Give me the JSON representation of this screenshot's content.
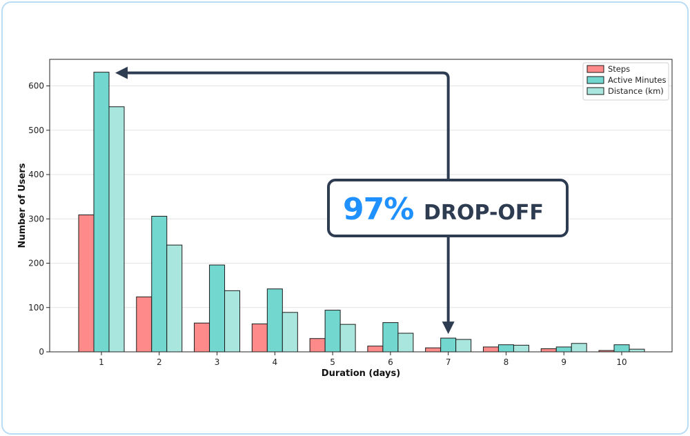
{
  "chart_data": {
    "type": "bar",
    "title": "",
    "xlabel": "Duration (days)",
    "ylabel": "Number of Users",
    "categories": [
      "1",
      "2",
      "3",
      "4",
      "5",
      "6",
      "7",
      "8",
      "9",
      "10"
    ],
    "ylim": [
      0,
      660
    ],
    "yticks": [
      "0",
      "100",
      "200",
      "300",
      "400",
      "500",
      "600"
    ],
    "grid": "horizontal",
    "legend_position": "top-right",
    "series": [
      {
        "name": "Steps",
        "color": "#ff8a8a",
        "values": [
          309,
          124,
          65,
          63,
          30,
          13,
          9,
          11,
          7,
          3
        ]
      },
      {
        "name": "Active Minutes",
        "color": "#72d8cf",
        "values": [
          631,
          306,
          196,
          142,
          94,
          66,
          31,
          16,
          11,
          16
        ]
      },
      {
        "name": "Distance (km)",
        "color": "#a9e6de",
        "values": [
          553,
          241,
          138,
          89,
          62,
          42,
          28,
          15,
          19,
          6
        ]
      }
    ],
    "annotation": {
      "percent": "97%",
      "text": "DROP-OFF",
      "from_category": "7",
      "to_category": "1",
      "arrow_color": "#2e3c52",
      "percent_color": "#1e90ff"
    }
  }
}
